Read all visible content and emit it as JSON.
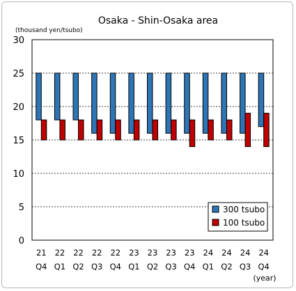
{
  "chart_data": {
    "type": "bar",
    "title": "Osaka - Shin-Osaka area",
    "unit_label": "(thousand yen/tsubo)",
    "xlabel": "(year)",
    "ylim": [
      0,
      30
    ],
    "y_ticks": [
      "0",
      "5",
      "10",
      "15",
      "20",
      "25",
      "30"
    ],
    "categories": [
      [
        "21",
        "Q4"
      ],
      [
        "22",
        "Q1"
      ],
      [
        "22",
        "Q2"
      ],
      [
        "22",
        "Q3"
      ],
      [
        "22",
        "Q4"
      ],
      [
        "23",
        "Q1"
      ],
      [
        "23",
        "Q2"
      ],
      [
        "23",
        "Q3"
      ],
      [
        "23",
        "Q4"
      ],
      [
        "24",
        "Q1"
      ],
      [
        "24",
        "Q2"
      ],
      [
        "24",
        "Q3"
      ],
      [
        "24",
        "Q4"
      ]
    ],
    "series": [
      {
        "name": "300 tsubo",
        "color": "#2e75b6",
        "low": [
          18,
          18,
          18,
          16,
          16,
          16,
          16,
          16,
          16,
          16,
          16,
          16,
          17
        ],
        "high": [
          25,
          25,
          25,
          25,
          25,
          25,
          25,
          25,
          25,
          25,
          25,
          25,
          25
        ]
      },
      {
        "name": "100 tsubo",
        "color": "#c00000",
        "low": [
          15,
          15,
          15,
          15,
          15,
          15,
          15,
          15,
          14,
          15,
          15,
          14,
          14
        ],
        "high": [
          18,
          18,
          18,
          18,
          18,
          18,
          18,
          18,
          18,
          18,
          18,
          19,
          19
        ]
      }
    ],
    "grid": "horizontal dashed",
    "legend_position": "bottom-right"
  }
}
